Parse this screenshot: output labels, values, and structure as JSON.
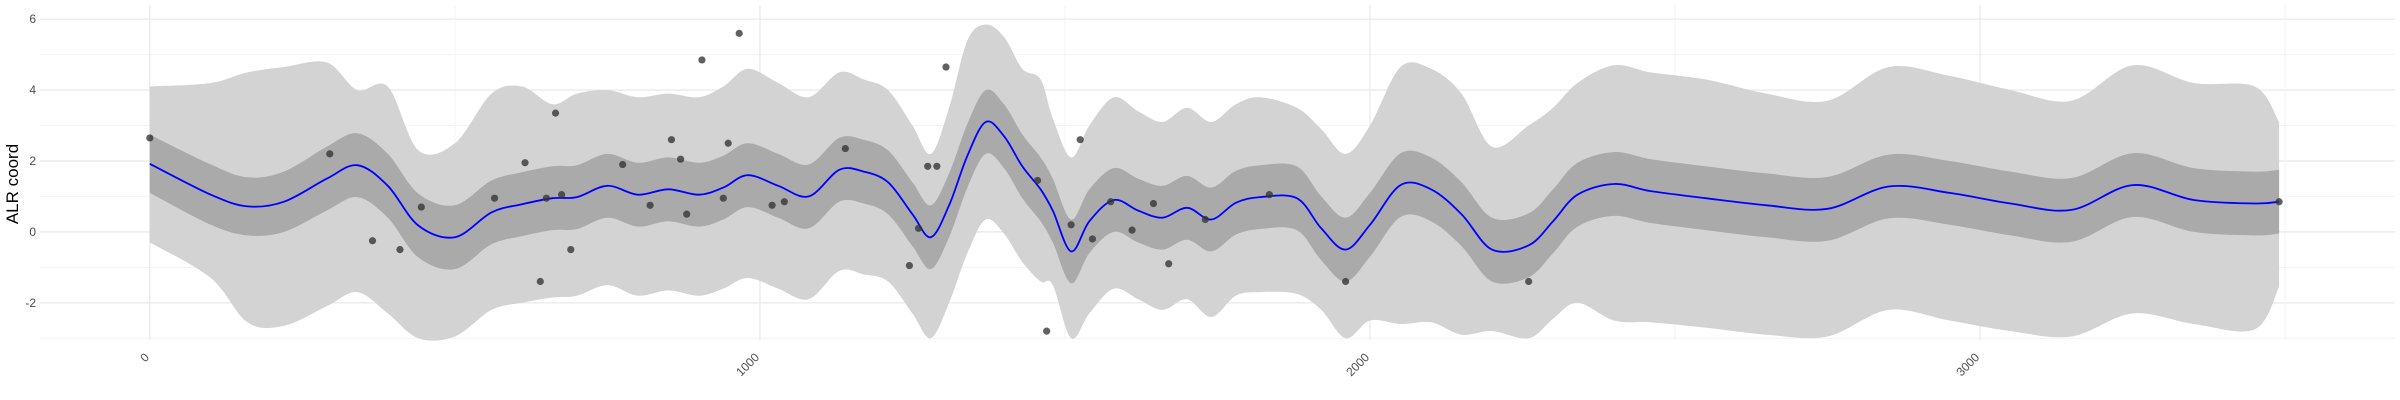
{
  "chart_data": {
    "type": "line",
    "title": "",
    "xlabel": "",
    "ylabel": "ALR coord",
    "xlim": [
      -180,
      3680
    ],
    "ylim": [
      -3.05,
      6.4
    ],
    "x_ticks": [
      0,
      1000,
      2000,
      3000
    ],
    "x_tick_labels": [
      "0",
      "1000",
      "2000",
      "3000"
    ],
    "y_ticks": [
      -2,
      0,
      2,
      4,
      6
    ],
    "y_tick_labels": [
      "-2",
      "0",
      "2",
      "4",
      "6"
    ],
    "grid": true,
    "legend": "none",
    "colors": {
      "mean_line": "#0000ff",
      "inner_band": "#aaaaaa",
      "outer_band": "#d3d3d3",
      "points": "#333333"
    },
    "series": [
      {
        "kind": "line",
        "x": [
          0,
          100,
          160,
          220,
          290,
          340,
          390,
          440,
          500,
          560,
          610,
          660,
          700,
          750,
          800,
          850,
          900,
          940,
          980,
          1030,
          1080,
          1130,
          1170,
          1210,
          1250,
          1280,
          1310,
          1340,
          1370,
          1400,
          1430,
          1460,
          1480,
          1510,
          1540,
          1580,
          1620,
          1660,
          1700,
          1740,
          1780,
          1820,
          1880,
          1920,
          1960,
          2000,
          2050,
          2100,
          2150,
          2200,
          2260,
          2300,
          2340,
          2400,
          2460,
          2550,
          2650,
          2750,
          2850,
          2950,
          3050,
          3150,
          3250,
          3350,
          3450,
          3490
        ],
        "y": [
          1.92,
          1.05,
          0.72,
          0.85,
          1.5,
          1.88,
          1.3,
          0.18,
          -0.15,
          0.55,
          0.78,
          0.95,
          0.98,
          1.3,
          1.05,
          1.2,
          1.05,
          1.25,
          1.6,
          1.3,
          1.0,
          1.75,
          1.7,
          1.4,
          0.5,
          -0.15,
          0.75,
          2.15,
          3.1,
          2.7,
          1.85,
          1.2,
          0.6,
          -0.55,
          0.3,
          0.9,
          0.6,
          0.4,
          0.68,
          0.35,
          0.82,
          0.98,
          0.95,
          0.1,
          -0.5,
          0.2,
          1.32,
          1.2,
          0.5,
          -0.5,
          -0.38,
          0.3,
          1.05,
          1.35,
          1.15,
          0.95,
          0.75,
          0.65,
          1.28,
          1.1,
          0.8,
          0.62,
          1.32,
          0.9,
          0.8,
          0.85
        ]
      },
      {
        "kind": "band",
        "x": [
          0,
          100,
          160,
          220,
          290,
          340,
          390,
          440,
          500,
          560,
          610,
          660,
          700,
          750,
          800,
          850,
          900,
          940,
          980,
          1030,
          1080,
          1130,
          1170,
          1210,
          1250,
          1280,
          1310,
          1340,
          1370,
          1400,
          1430,
          1460,
          1480,
          1510,
          1540,
          1580,
          1620,
          1660,
          1700,
          1740,
          1780,
          1820,
          1880,
          1920,
          1960,
          2000,
          2050,
          2100,
          2150,
          2200,
          2260,
          2300,
          2340,
          2400,
          2460,
          2550,
          2650,
          2750,
          2850,
          2950,
          3050,
          3150,
          3250,
          3350,
          3450,
          3490
        ],
        "lower": [
          1.1,
          0.2,
          -0.1,
          0.0,
          0.6,
          0.98,
          0.4,
          -0.72,
          -1.05,
          -0.35,
          -0.12,
          0.05,
          0.08,
          0.4,
          0.15,
          0.3,
          0.15,
          0.35,
          0.7,
          0.4,
          0.1,
          0.85,
          0.8,
          0.5,
          -0.4,
          -1.05,
          -0.15,
          1.25,
          2.2,
          1.8,
          0.95,
          0.3,
          -0.3,
          -1.45,
          -0.6,
          0.0,
          -0.3,
          -0.5,
          -0.22,
          -0.55,
          -0.08,
          0.08,
          0.05,
          -0.8,
          -1.4,
          -0.7,
          0.42,
          0.3,
          -0.4,
          -1.4,
          -1.28,
          -0.6,
          0.15,
          0.45,
          0.25,
          0.05,
          -0.15,
          -0.25,
          0.38,
          0.2,
          -0.1,
          -0.28,
          0.42,
          0.0,
          -0.1,
          -0.05
        ],
        "upper": [
          2.74,
          1.9,
          1.54,
          1.7,
          2.4,
          2.78,
          2.2,
          1.08,
          0.75,
          1.45,
          1.68,
          1.85,
          1.88,
          2.2,
          1.95,
          2.1,
          1.95,
          2.15,
          2.5,
          2.2,
          1.9,
          2.65,
          2.6,
          2.3,
          1.4,
          0.75,
          1.65,
          3.05,
          4.0,
          3.6,
          2.75,
          2.1,
          1.5,
          0.35,
          1.2,
          1.8,
          1.5,
          1.3,
          1.58,
          1.25,
          1.72,
          1.88,
          1.85,
          1.0,
          0.4,
          1.1,
          2.22,
          2.1,
          1.4,
          0.4,
          0.52,
          1.2,
          1.95,
          2.25,
          2.05,
          1.85,
          1.65,
          1.55,
          2.18,
          2.0,
          1.7,
          1.52,
          2.22,
          1.8,
          1.7,
          1.75
        ]
      },
      {
        "kind": "band",
        "x": [
          0,
          100,
          160,
          220,
          290,
          340,
          390,
          440,
          500,
          560,
          610,
          660,
          700,
          750,
          800,
          850,
          900,
          940,
          980,
          1030,
          1080,
          1130,
          1170,
          1210,
          1250,
          1280,
          1310,
          1340,
          1370,
          1400,
          1430,
          1460,
          1480,
          1510,
          1540,
          1580,
          1620,
          1660,
          1700,
          1740,
          1780,
          1820,
          1880,
          1920,
          1960,
          2000,
          2050,
          2100,
          2150,
          2200,
          2260,
          2300,
          2340,
          2400,
          2460,
          2550,
          2650,
          2750,
          2850,
          2950,
          3050,
          3150,
          3250,
          3350,
          3450,
          3490
        ],
        "lower": [
          -0.3,
          -1.3,
          -2.55,
          -2.65,
          -2.1,
          -1.7,
          -2.3,
          -3.0,
          -2.95,
          -2.2,
          -2.0,
          -1.85,
          -1.8,
          -1.5,
          -1.8,
          -1.65,
          -1.8,
          -1.6,
          -1.3,
          -1.6,
          -1.9,
          -1.1,
          -1.2,
          -1.4,
          -2.3,
          -3.0,
          -2.0,
          -0.6,
          0.35,
          -0.05,
          -0.85,
          -1.4,
          -1.5,
          -3.0,
          -2.3,
          -1.6,
          -1.9,
          -2.2,
          -1.9,
          -2.4,
          -1.8,
          -1.7,
          -1.75,
          -2.2,
          -3.0,
          -2.5,
          -2.6,
          -2.55,
          -2.9,
          -2.8,
          -3.0,
          -2.45,
          -2.0,
          -2.5,
          -2.55,
          -2.7,
          -2.9,
          -2.95,
          -2.2,
          -2.5,
          -2.8,
          -2.95,
          -2.3,
          -2.6,
          -2.75,
          -1.55
        ],
        "upper": [
          4.1,
          4.2,
          4.5,
          4.65,
          4.78,
          4.0,
          4.1,
          2.3,
          2.5,
          3.9,
          4.1,
          3.6,
          3.9,
          4.0,
          3.8,
          3.9,
          3.8,
          4.1,
          4.6,
          4.2,
          3.8,
          4.5,
          4.3,
          4.0,
          3.0,
          2.2,
          3.5,
          5.4,
          5.85,
          5.5,
          4.6,
          4.3,
          3.2,
          2.1,
          3.0,
          3.8,
          3.4,
          3.1,
          3.5,
          3.1,
          3.6,
          3.8,
          3.5,
          2.9,
          2.2,
          3.0,
          4.65,
          4.6,
          3.9,
          2.4,
          3.0,
          3.5,
          4.2,
          4.7,
          4.5,
          4.3,
          3.9,
          3.7,
          4.65,
          4.4,
          4.0,
          3.7,
          4.7,
          4.2,
          4.1,
          3.1
        ]
      },
      {
        "kind": "points",
        "x": [
          0,
          295,
          365,
          410,
          445,
          565,
          615,
          640,
          650,
          665,
          675,
          690,
          775,
          820,
          855,
          870,
          880,
          905,
          940,
          948,
          966,
          1020,
          1040,
          1140,
          1245,
          1260,
          1275,
          1290,
          1305,
          1455,
          1470,
          1510,
          1525,
          1545,
          1575,
          1610,
          1645,
          1670,
          1730,
          1835,
          1960,
          2260,
          3490
        ],
        "y": [
          2.65,
          2.2,
          -0.25,
          -0.5,
          0.7,
          0.95,
          1.95,
          -1.4,
          0.95,
          3.35,
          1.05,
          -0.5,
          1.9,
          0.75,
          2.6,
          2.05,
          0.5,
          4.85,
          0.95,
          2.5,
          5.6,
          0.75,
          0.85,
          2.35,
          -0.95,
          0.1,
          1.85,
          1.85,
          4.65,
          1.45,
          -2.8,
          0.2,
          2.6,
          -0.2,
          0.85,
          0.05,
          0.8,
          -0.9,
          0.35,
          1.05,
          -1.4,
          -1.4,
          0.85
        ]
      }
    ]
  }
}
